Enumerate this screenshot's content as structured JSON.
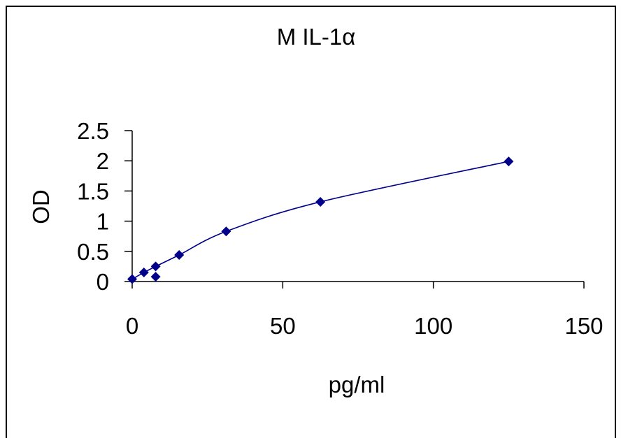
{
  "chart_data": {
    "type": "scatter",
    "title": "M IL-1α",
    "xlabel": "pg/ml",
    "ylabel": "OD",
    "xlim": [
      0,
      150
    ],
    "ylim": [
      0,
      2.5
    ],
    "x_ticks": [
      0,
      50,
      100,
      150
    ],
    "x_tick_labels": [
      "0",
      "50",
      "100",
      "150"
    ],
    "y_ticks": [
      0,
      0.5,
      1,
      1.5,
      2,
      2.5
    ],
    "y_tick_labels": [
      "0",
      "0.5",
      "1",
      "1.5",
      "2",
      "2.5"
    ],
    "grid": false,
    "legend": "none",
    "marker": "diamond",
    "trendline": "smooth",
    "series": [
      {
        "color": "#00008b",
        "points": [
          {
            "x": 0,
            "y": 0.04
          },
          {
            "x": 3.9,
            "y": 0.15
          },
          {
            "x": 7.8,
            "y": 0.08
          },
          {
            "x": 7.8,
            "y": 0.25
          },
          {
            "x": 15.6,
            "y": 0.44
          },
          {
            "x": 31.2,
            "y": 0.83
          },
          {
            "x": 62.5,
            "y": 1.32
          },
          {
            "x": 125,
            "y": 1.99
          }
        ]
      }
    ]
  }
}
